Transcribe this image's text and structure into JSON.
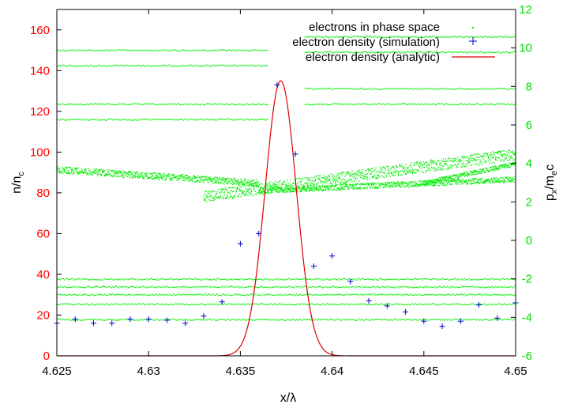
{
  "chart_data": {
    "type": "scatter",
    "xlabel_main": "x/λ",
    "ylabel_left_main": "n/n",
    "ylabel_left_sub": "c",
    "ylabel_right_p": "p",
    "ylabel_right_sub1": "x",
    "ylabel_right_mid": "/m",
    "ylabel_right_sub2": "e",
    "ylabel_right_end": "c",
    "xlim": [
      4.625,
      4.65
    ],
    "ylim_left": [
      0,
      170
    ],
    "ylim_right": [
      -6,
      12
    ],
    "x_ticks": [
      "4.625",
      "4.63",
      "4.635",
      "4.64",
      "4.645",
      "4.65"
    ],
    "x_tick_values": [
      4.625,
      4.63,
      4.635,
      4.64,
      4.645,
      4.65
    ],
    "y_left_ticks": [
      0,
      20,
      40,
      60,
      80,
      100,
      120,
      140,
      160
    ],
    "y_right_ticks": [
      -6,
      -4,
      -2,
      0,
      2,
      4,
      6,
      8,
      10,
      12
    ],
    "colors": {
      "left_axis": "#ff0000",
      "right_axis": "#00dd00",
      "phase_space": "#00ee00",
      "simulation": "#0000cc",
      "analytic": "#dd0000"
    },
    "legend": [
      {
        "label": "electrons in phase space",
        "style": "dots"
      },
      {
        "label": "electron density (simulation)",
        "style": "plus"
      },
      {
        "label": "electron density (analytic)",
        "style": "line"
      }
    ],
    "series": [
      {
        "name": "electron density (simulation)",
        "axis": "left",
        "x": [
          4.625,
          4.626,
          4.627,
          4.628,
          4.629,
          4.63,
          4.631,
          4.632,
          4.633,
          4.634,
          4.635,
          4.636,
          4.637,
          4.638,
          4.639,
          4.64,
          4.641,
          4.642,
          4.643,
          4.644,
          4.645,
          4.646,
          4.647,
          4.648,
          4.649,
          4.65
        ],
        "y": [
          16,
          18,
          16,
          16,
          18,
          18,
          17.5,
          16,
          19.5,
          26.5,
          55,
          60,
          133,
          99,
          44,
          49,
          36.5,
          27,
          24.5,
          21.5,
          17,
          14.5,
          17,
          25,
          18.5,
          26
        ]
      },
      {
        "name": "electron density (analytic)",
        "axis": "left",
        "function": "gaussian",
        "center": 4.6372,
        "peak": 135,
        "sigma": 0.00085
      },
      {
        "name": "electrons in phase space",
        "axis": "right",
        "bands": [
          {
            "x": [
              4.625,
              4.6365
            ],
            "p": 9.9
          },
          {
            "x": [
              4.625,
              4.6365
            ],
            "p": 9.1
          },
          {
            "x": [
              4.625,
              4.6365
            ],
            "p": 7.1
          },
          {
            "x": [
              4.625,
              4.6365
            ],
            "p": 6.3
          },
          {
            "x": [
              4.6385,
              4.65
            ],
            "p": 10.6
          },
          {
            "x": [
              4.6385,
              4.65
            ],
            "p": 9.8
          },
          {
            "x": [
              4.6385,
              4.65
            ],
            "p": 7.9
          },
          {
            "x": [
              4.6385,
              4.65
            ],
            "p": 7.1
          },
          {
            "x": [
              4.625,
              4.65
            ],
            "p": -2.0
          },
          {
            "x": [
              4.625,
              4.65
            ],
            "p": -2.4
          },
          {
            "x": [
              4.625,
              4.65
            ],
            "p": -2.8
          },
          {
            "x": [
              4.625,
              4.65
            ],
            "p": -3.3
          },
          {
            "x": [
              4.625,
              4.65
            ],
            "p": -4.1
          }
        ],
        "sheets": [
          {
            "x0": 4.625,
            "p0": 3.7,
            "x1": 4.636,
            "p1": 3.0,
            "thickness": 0.35
          },
          {
            "x0": 4.633,
            "p0": 2.3,
            "x1": 4.65,
            "p1": 4.5,
            "thickness": 0.6
          },
          {
            "x0": 4.636,
            "p0": 2.6,
            "x1": 4.65,
            "p1": 3.2,
            "thickness": 0.3
          },
          {
            "x0": 4.645,
            "p0": 3.0,
            "x1": 4.65,
            "p1": 4.0,
            "thickness": 0.25
          }
        ]
      }
    ]
  }
}
